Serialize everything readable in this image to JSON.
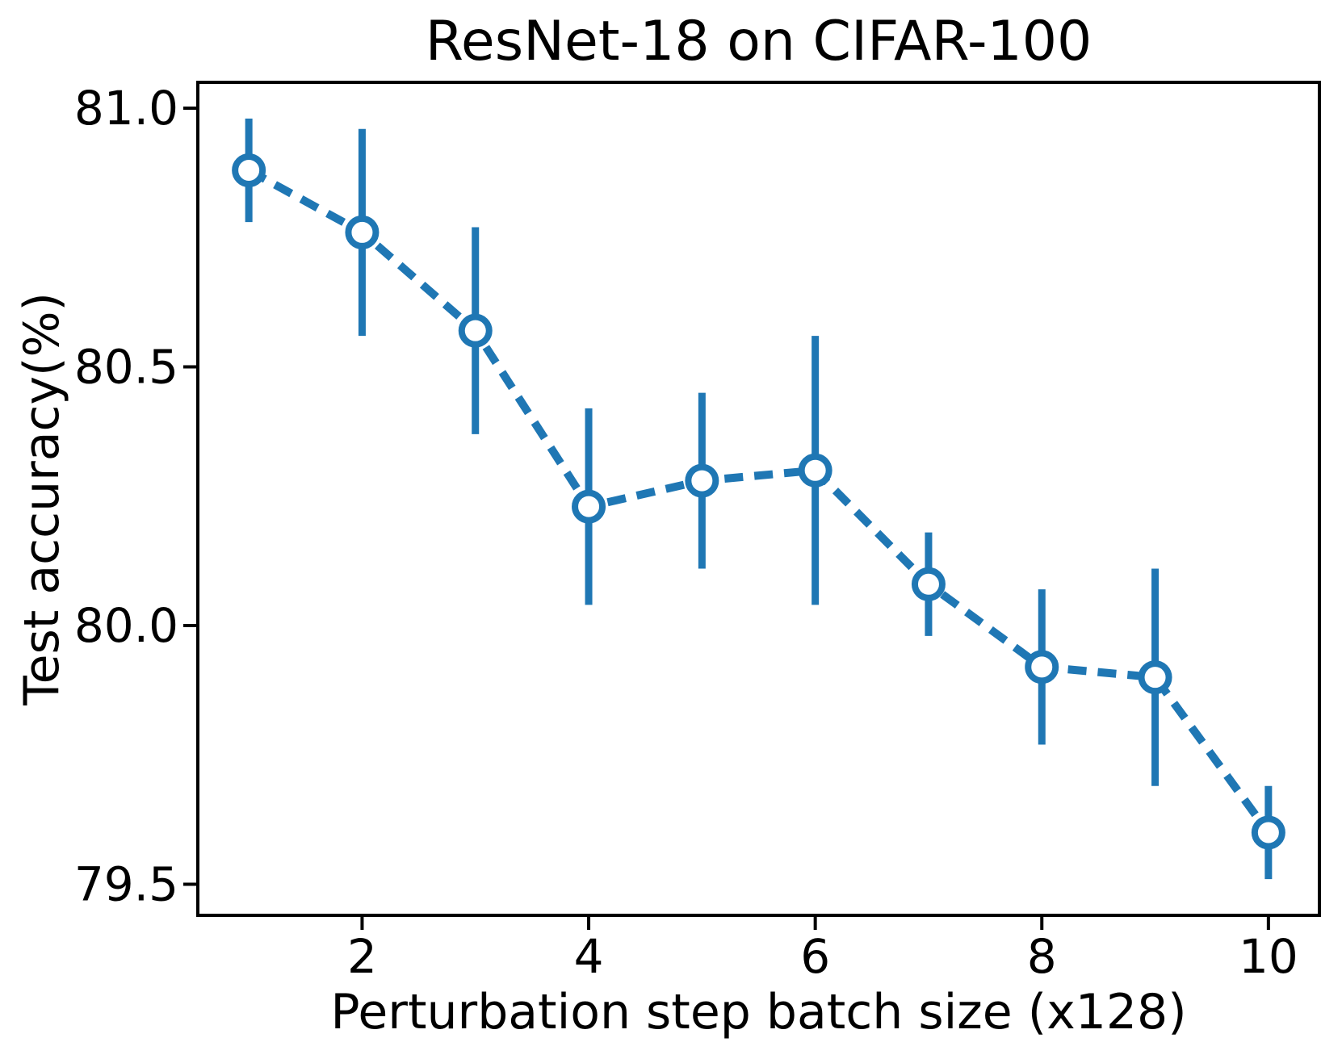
{
  "figure": {
    "background": "#ffffff",
    "text_color": "#000000"
  },
  "chart_data": {
    "type": "line",
    "title": "ResNet-18 on CIFAR-100",
    "xlabel": "Perturbation step batch size (x128)",
    "ylabel": "Test accuracy(%)",
    "x": [
      1,
      2,
      3,
      4,
      5,
      6,
      7,
      8,
      9,
      10
    ],
    "series": [
      {
        "name": "test accuracy",
        "values": [
          80.88,
          80.76,
          80.57,
          80.23,
          80.28,
          80.3,
          80.08,
          79.92,
          79.9,
          79.6
        ],
        "yerr": [
          0.1,
          0.2,
          0.2,
          0.19,
          0.17,
          0.26,
          0.1,
          0.15,
          0.21,
          0.09
        ],
        "color": "#1f77b4",
        "line_style": "dashed",
        "marker": "open-circle"
      }
    ],
    "xticks": [
      "2",
      "4",
      "6",
      "8",
      "10"
    ],
    "xtick_values": [
      2,
      4,
      6,
      8,
      10
    ],
    "yticks": [
      "81.0",
      "80.5",
      "80.0",
      "79.5"
    ],
    "ytick_values": [
      81.0,
      80.5,
      80.0,
      79.5
    ],
    "xlim": [
      0.55,
      10.45
    ],
    "ylim": [
      79.44,
      81.05
    ],
    "grid": false,
    "legend_position": "none"
  }
}
